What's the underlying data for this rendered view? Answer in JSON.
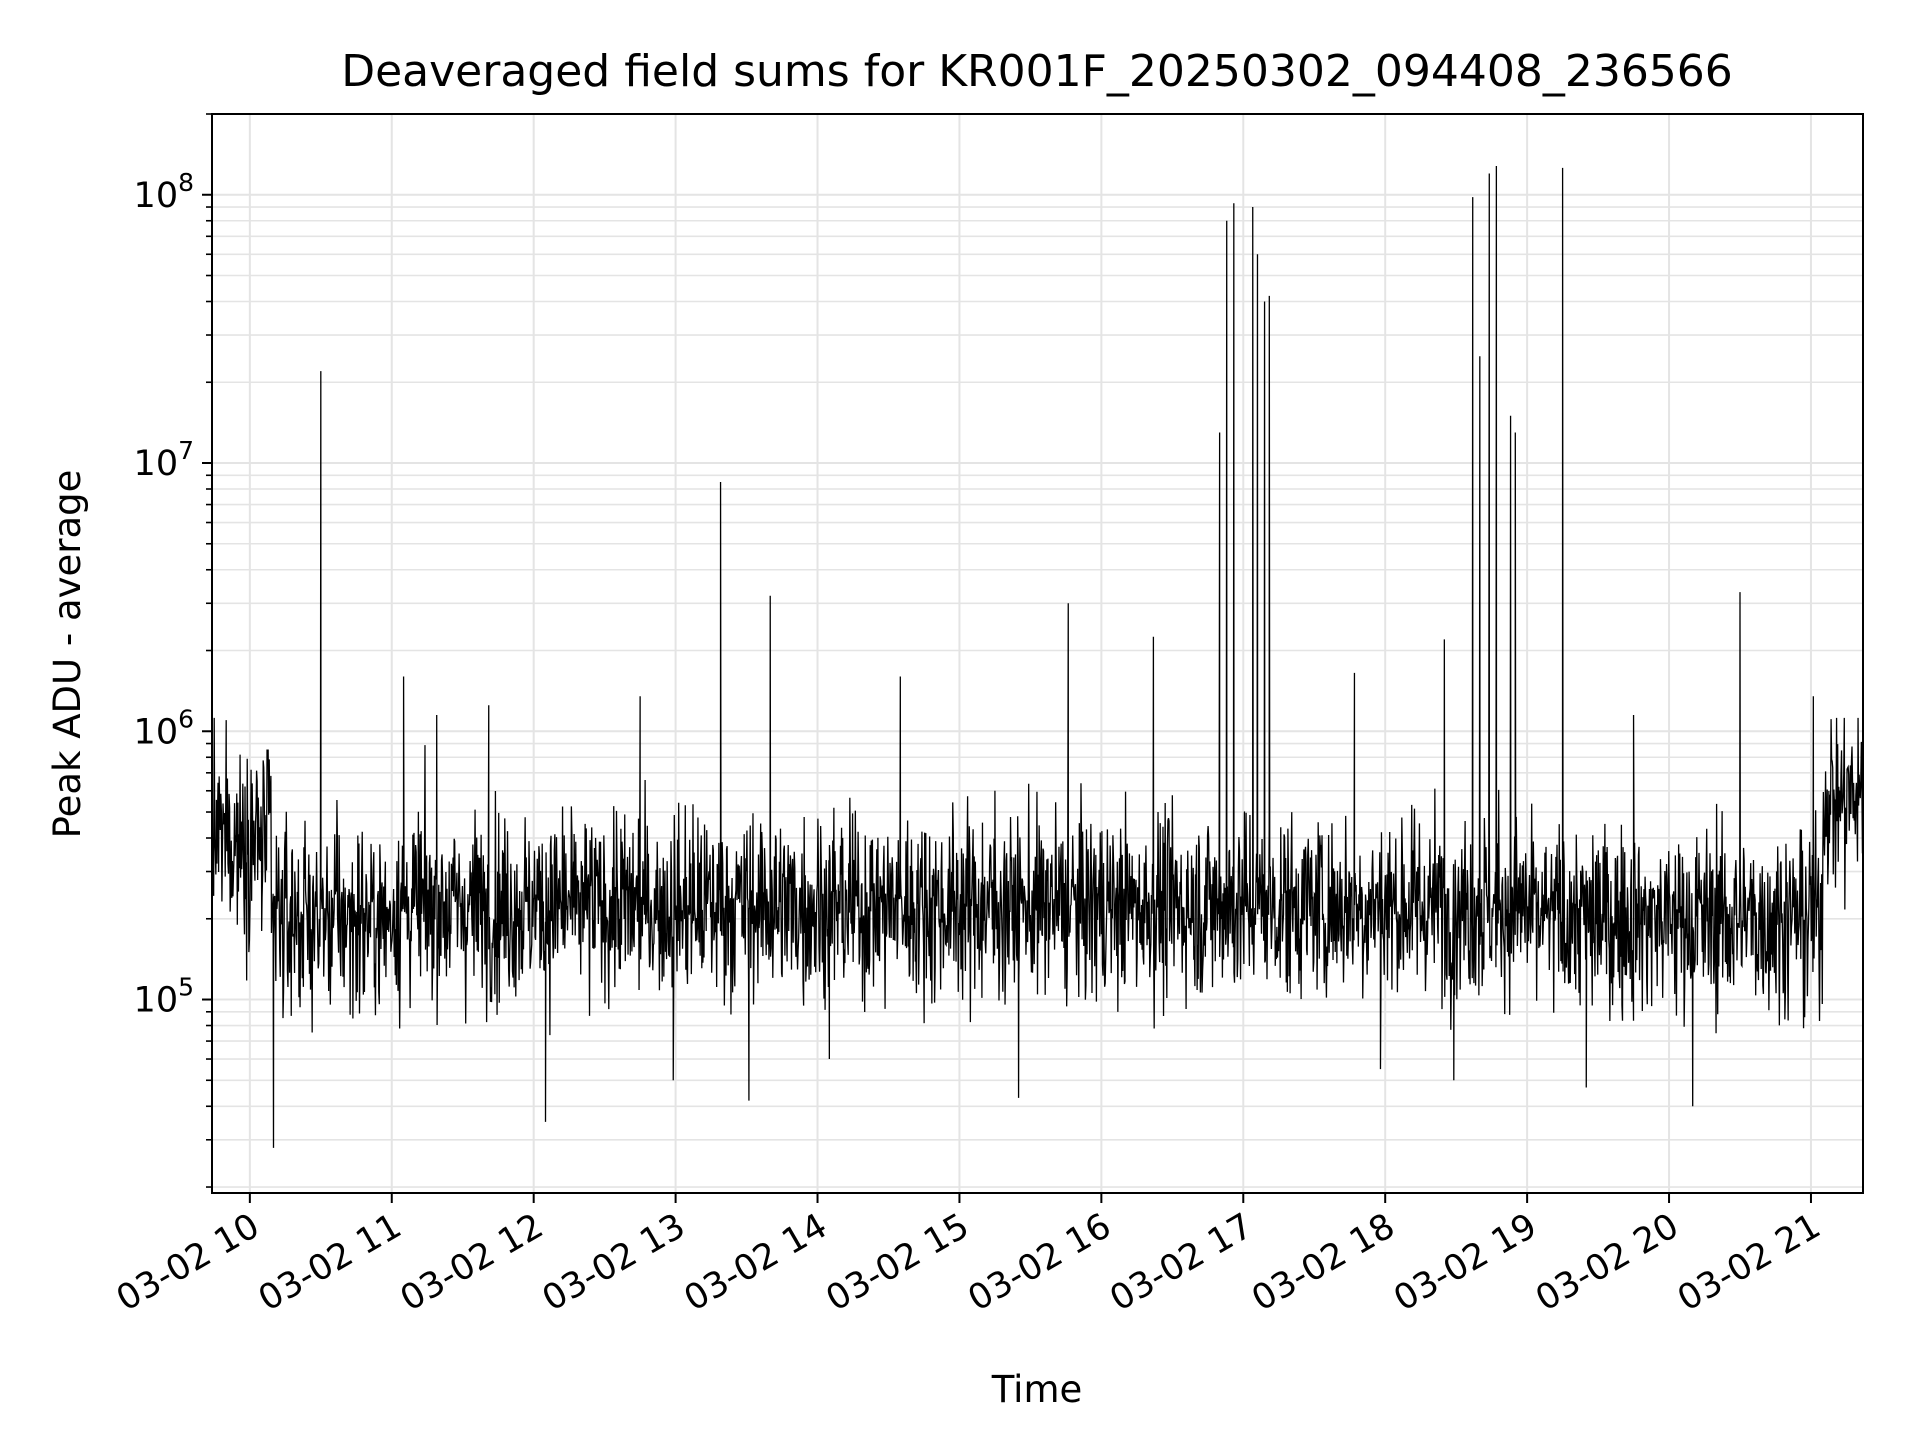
{
  "chart_data": {
    "type": "line",
    "title": "Deaveraged field sums for KR001F_20250302_094408_236566",
    "xlabel": "Time",
    "ylabel": "Peak ADU - average",
    "y_scale": "log",
    "ylim": [
      19000,
      200000000
    ],
    "xlim": [
      "2025-03-02 09:44",
      "2025-03-02 21:22"
    ],
    "x_tick_labels": [
      "03-02 10",
      "03-02 11",
      "03-02 12",
      "03-02 13",
      "03-02 14",
      "03-02 15",
      "03-02 16",
      "03-02 17",
      "03-02 18",
      "03-02 19",
      "03-02 20",
      "03-02 21"
    ],
    "y_tick_labels": [
      {
        "base": "10",
        "exp": "5",
        "value": 100000
      },
      {
        "base": "10",
        "exp": "6",
        "value": 1000000
      },
      {
        "base": "10",
        "exp": "7",
        "value": 10000000
      },
      {
        "base": "10",
        "exp": "8",
        "value": 100000000
      }
    ],
    "grid": "on (major and minor)",
    "legend": "none",
    "line_color": "#000000",
    "series": [
      {
        "x": [
          "2025-03-02 09:44",
          "2025-03-02 09:50",
          "2025-03-02 10:05",
          "2025-03-02 10:10",
          "2025-03-02 10:19",
          "2025-03-02 10:30",
          "2025-03-02 10:37",
          "2025-03-02 11:05",
          "2025-03-02 11:19",
          "2025-03-02 11:30",
          "2025-03-02 11:41",
          "2025-03-02 12:05",
          "2025-03-02 12:17",
          "2025-03-02 12:45",
          "2025-03-02 12:59",
          "2025-03-02 13:08",
          "2025-03-02 13:19",
          "2025-03-02 13:28",
          "2025-03-02 13:31",
          "2025-03-02 13:40",
          "2025-03-02 14:05",
          "2025-03-02 14:35",
          "2025-03-02 15:15",
          "2025-03-02 15:25",
          "2025-03-02 15:46",
          "2025-03-02 16:04",
          "2025-03-02 16:22",
          "2025-03-02 16:50",
          "2025-03-02 16:53",
          "2025-03-02 16:56",
          "2025-03-02 17:04",
          "2025-03-02 17:06",
          "2025-03-02 17:09",
          "2025-03-02 17:11",
          "2025-03-02 17:15",
          "2025-03-02 17:47",
          "2025-03-02 17:58",
          "2025-03-02 18:25",
          "2025-03-02 18:29",
          "2025-03-02 18:37",
          "2025-03-02 18:40",
          "2025-03-02 18:44",
          "2025-03-02 18:47",
          "2025-03-02 18:53",
          "2025-03-02 18:55",
          "2025-03-02 19:15",
          "2025-03-02 19:25",
          "2025-03-02 19:45",
          "2025-03-02 20:10",
          "2025-03-02 20:30",
          "2025-03-02 21:01",
          "2025-03-02 21:22"
        ],
        "y": [
          1700000,
          1100000,
          180000,
          28000,
          300000,
          22000000,
          400000,
          1600000,
          1150000,
          200000,
          1250000,
          35000,
          220000,
          1350000,
          50000,
          220000,
          8500000,
          250000,
          42000,
          3200000,
          60000,
          1600000,
          600000,
          43000,
          3000000,
          200000,
          2250000,
          13000000,
          80000000,
          93000000,
          90000000,
          60000000,
          40000000,
          42000000,
          200000,
          1650000,
          55000,
          2200000,
          50000,
          98000000,
          25000000,
          120000000,
          128000000,
          15000000,
          13000000,
          126000000,
          47000,
          1150000,
          40000,
          3300000,
          1350000,
          400000
        ]
      }
    ]
  }
}
